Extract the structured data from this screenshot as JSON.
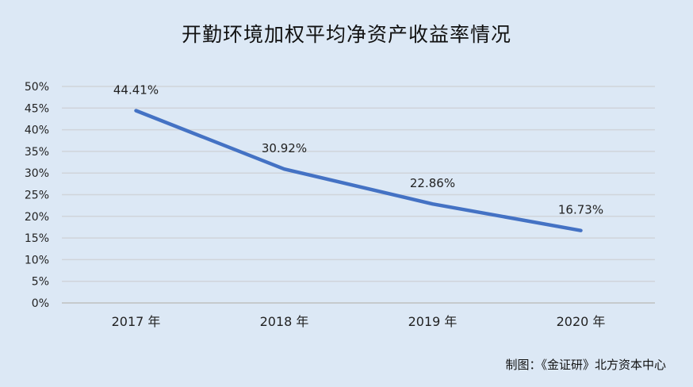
{
  "chart_data": {
    "type": "line",
    "title": "开勤环境加权平均净资产收益率情况",
    "xlabel": "",
    "ylabel": "",
    "categories": [
      "2017 年",
      "2018 年",
      "2019 年",
      "2020 年"
    ],
    "series": [
      {
        "values": [
          44.41,
          30.92,
          22.86,
          16.73
        ],
        "labels": [
          "44.41%",
          "30.92%",
          "22.86%",
          "16.73%"
        ],
        "color": "#4472c4"
      }
    ],
    "ylim": [
      0,
      50
    ],
    "yticks": [
      0,
      5,
      10,
      15,
      20,
      25,
      30,
      35,
      40,
      45,
      50
    ],
    "ytick_labels": [
      "0%",
      "5%",
      "10%",
      "15%",
      "20%",
      "25%",
      "30%",
      "35%",
      "40%",
      "45%",
      "50%"
    ],
    "grid": true,
    "legend": "none"
  },
  "credit": "制图：《金证研》北方资本中心"
}
